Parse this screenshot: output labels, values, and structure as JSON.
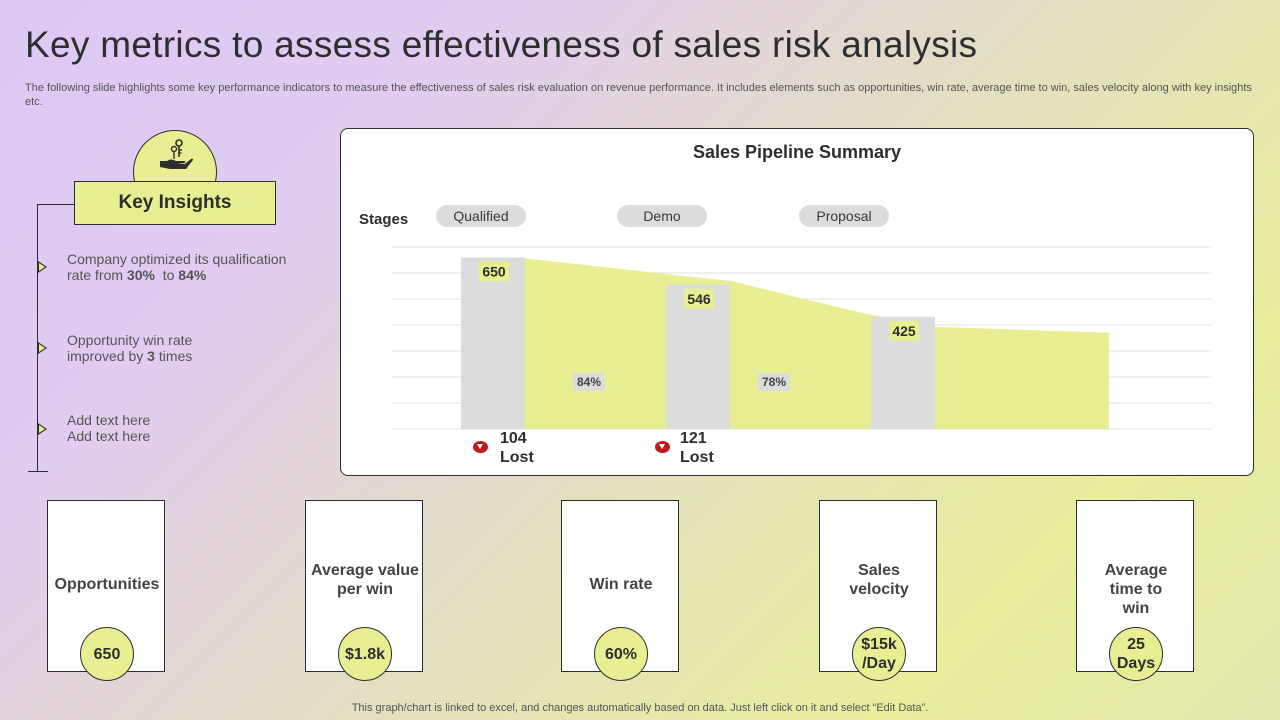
{
  "page": {
    "title": "Key metrics to assess effectiveness of sales risk analysis",
    "subtitle": "The following slide highlights some key performance indicators to measure the effectiveness of sales risk evaluation on revenue performance. It includes elements such as opportunities, win rate, average time to win, sales velocity along with key insights etc.",
    "footer": "This graph/chart is linked to excel,  and changes automatically based on data. Just left click on it and select “Edit Data”."
  },
  "key_insights": {
    "heading": "Key Insights",
    "icon": "hand-with-keys-icon",
    "items": [
      {
        "pre": "Company optimized its qualification rate from ",
        "b1": "30%",
        "mid": "  to ",
        "b2": "84%"
      },
      {
        "pre": "Opportunity win rate improved by ",
        "b1": "3",
        "mid": " times",
        "b2": ""
      },
      {
        "line1": "Add text here",
        "line2": "Add text here"
      }
    ]
  },
  "chart_data": {
    "type": "bar",
    "title": "Sales Pipeline Summary",
    "stages_label": "Stages",
    "categories": [
      "Qualified",
      "Demo",
      "Proposal"
    ],
    "values": [
      650,
      546,
      425
    ],
    "conversion_labels": [
      "84%",
      "78%"
    ],
    "lost": [
      {
        "value": "104",
        "label": "Lost"
      },
      {
        "value": "121",
        "label": "Lost"
      }
    ],
    "ylim": [
      0,
      700
    ],
    "grid": true,
    "colors": {
      "bar": "#dcdcdc",
      "area": "#e8ef93",
      "label_bg": "#e8ef93",
      "lost_icon": "#c0191e"
    }
  },
  "metrics": [
    {
      "label": "Opportunities",
      "value": "650"
    },
    {
      "label": "Average value per win",
      "value": "$1.8k"
    },
    {
      "label": "Win rate",
      "value": "60%"
    },
    {
      "label": "Sales velocity",
      "value": "$15k /Day"
    },
    {
      "label": "Average time to win",
      "value": "25 Days"
    }
  ]
}
